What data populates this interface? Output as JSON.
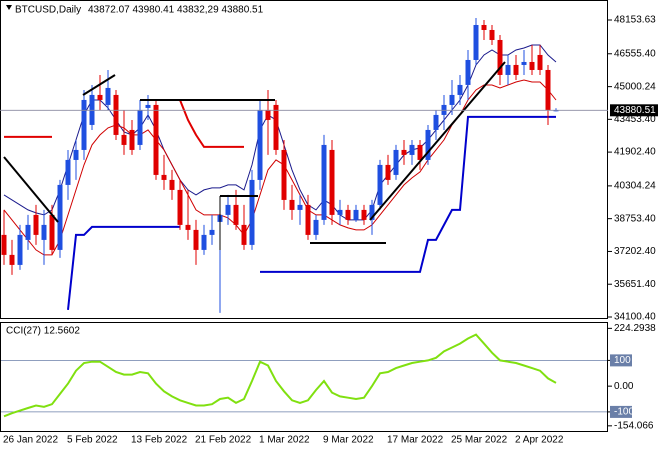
{
  "chart_data": [
    {
      "type": "candlestick",
      "title": "BTCUSD,Daily",
      "subtitle": "43872.07 43980.41 43832,29 43880.51",
      "categories": [
        "26 Jan 2022",
        null,
        null,
        null,
        null,
        null,
        null,
        null,
        "5 Feb 2022",
        null,
        null,
        null,
        null,
        null,
        null,
        null,
        "13 Feb 2022",
        null,
        null,
        null,
        null,
        null,
        null,
        null,
        "21 Feb 2022",
        null,
        null,
        null,
        null,
        null,
        null,
        null,
        "1 Mar 2022",
        null,
        null,
        null,
        null,
        null,
        null,
        null,
        "9 Mar 2022",
        null,
        null,
        null,
        null,
        null,
        null,
        null,
        "17 Mar 2022",
        null,
        null,
        null,
        null,
        null,
        null,
        null,
        "25 Mar 2022",
        null,
        null,
        null,
        null,
        null,
        null,
        null,
        "2 Apr 2022",
        null,
        null,
        null,
        null,
        null
      ],
      "open": [
        37985,
        37039,
        36565,
        37748,
        38931,
        37748,
        38931,
        37275,
        40350,
        41532,
        42005,
        43188,
        44607,
        44134,
        44607,
        42715,
        42951,
        42242,
        43992,
        44134,
        40823,
        40586,
        40113,
        38458,
        38221,
        37275,
        37985,
        38600,
        38931,
        39404,
        38458,
        37512,
        40586,
        43897,
        44134,
        42005,
        39640,
        39167,
        39404,
        37985,
        38694,
        42005,
        38931,
        39167,
        38694,
        39167,
        38694,
        39404,
        41296,
        40823,
        42005,
        41769,
        42242,
        41532,
        42951,
        43661,
        44134,
        44607,
        45080,
        46262,
        47917,
        47681,
        47208,
        45553,
        46026,
        46026,
        46167,
        46499,
        45789,
        43872.07
      ],
      "high": [
        39167,
        37748,
        38458,
        38931,
        39404,
        39167,
        39404,
        40586,
        42005,
        42478,
        44843,
        45080,
        45553,
        45789,
        44843,
        43897,
        43424,
        44370,
        44607,
        44370,
        41769,
        41059,
        40586,
        40113,
        38694,
        38458,
        38931,
        39640,
        39877,
        40113,
        39404,
        41059,
        44370,
        44843,
        44370,
        42478,
        40350,
        39877,
        39877,
        38931,
        42715,
        42478,
        39640,
        39404,
        39404,
        39404,
        39640,
        41532,
        41769,
        42242,
        42478,
        42478,
        42478,
        43188,
        43897,
        44607,
        45316,
        45553,
        46735,
        48249,
        48154,
        47917,
        47445,
        46499,
        46499,
        46735,
        46972,
        46972,
        46026,
        43980.41
      ],
      "low": [
        36565,
        36093,
        36329,
        37275,
        37512,
        36565,
        37039,
        36897,
        39640,
        40586,
        41532,
        42951,
        43897,
        43897,
        42478,
        41769,
        41769,
        42005,
        43424,
        40586,
        40113,
        39640,
        38221,
        37748,
        36565,
        37039,
        37512,
        34295,
        38458,
        38221,
        37275,
        37275,
        40113,
        41769,
        41769,
        39167,
        38694,
        38458,
        37748,
        37748,
        38458,
        38458,
        38458,
        38458,
        38600,
        38458,
        37985,
        39167,
        40350,
        40586,
        41296,
        41296,
        41059,
        41296,
        42478,
        42951,
        43661,
        44134,
        44370,
        46026,
        47208,
        46972,
        45080,
        45080,
        45316,
        45553,
        45553,
        45553,
        43188,
        43832.29
      ],
      "close": [
        37039,
        36565,
        37985,
        38458,
        37985,
        38458,
        37275,
        40350,
        41532,
        42005,
        44370,
        44607,
        44370,
        44938,
        42715,
        42242,
        42005,
        43897,
        44134,
        40823,
        40586,
        40113,
        38458,
        38221,
        37275,
        37985,
        38221,
        38931,
        39404,
        38458,
        37512,
        40586,
        43897,
        43424,
        42005,
        39640,
        39167,
        39404,
        37985,
        38694,
        42242,
        38931,
        39167,
        38694,
        39167,
        38694,
        39404,
        41296,
        40586,
        42005,
        41769,
        42242,
        41532,
        42951,
        43661,
        44134,
        44607,
        45080,
        46262,
        47917,
        47681,
        47208,
        45553,
        46026,
        45553,
        46167,
        45789,
        45789,
        43897,
        43880.51
      ],
      "up_color": "#1f4fe0",
      "down_color": "#e00000",
      "series": [
        {
          "color": "#1a1a8c",
          "width": 1,
          "values": [
            39877,
            39640,
            39404,
            39167,
            39025,
            38931,
            39167,
            40113,
            41296,
            42478,
            43661,
            44370,
            44370,
            43992,
            43424,
            42856,
            42715,
            43046,
            43661,
            42951,
            42005,
            41296,
            40586,
            40113,
            39877,
            40113,
            40208,
            40208,
            40350,
            40350,
            40113,
            41296,
            42951,
            43661,
            43424,
            42242,
            41059,
            40113,
            39404,
            39167,
            39640,
            39404,
            38931,
            38694,
            38694,
            38694,
            39167,
            40350,
            40823,
            41296,
            41769,
            42005,
            42100,
            42478,
            42951,
            43424,
            43897,
            44370,
            45080,
            46026,
            46499,
            46735,
            46499,
            46499,
            46735,
            46830,
            46972,
            46972,
            46499,
            46167
          ]
        },
        {
          "color": "#d00000",
          "width": 1,
          "values": [
            39167,
            38694,
            38221,
            37748,
            37275,
            37039,
            37039,
            37748,
            38931,
            40113,
            41296,
            42242,
            42715,
            43046,
            43188,
            43046,
            42715,
            42715,
            42951,
            42478,
            42005,
            41296,
            40586,
            39877,
            39167,
            38931,
            38931,
            38931,
            38789,
            38458,
            37985,
            38694,
            39877,
            41059,
            41532,
            41296,
            40586,
            39877,
            39167,
            38931,
            38931,
            38694,
            38458,
            38316,
            38221,
            38221,
            38458,
            38931,
            39404,
            39877,
            40350,
            40681,
            40966,
            41532,
            42005,
            42478,
            43188,
            43661,
            44370,
            44843,
            45080,
            45080,
            44938,
            45080,
            45221,
            45316,
            45221,
            45221,
            44843,
            44370
          ]
        },
        {
          "color": "#0000cc",
          "width": 2,
          "values": [
            null,
            null,
            null,
            null,
            null,
            null,
            null,
            null,
            34437,
            37985,
            37985,
            38363,
            38363,
            38363,
            38363,
            38363,
            38363,
            38363,
            38363,
            38363,
            38363,
            38363,
            38363,
            null,
            null,
            null,
            null,
            null,
            null,
            null,
            null,
            null,
            36234,
            36234,
            36234,
            36234,
            36234,
            36234,
            36234,
            36234,
            36234,
            36234,
            36234,
            36234,
            36234,
            36234,
            36234,
            36234,
            36234,
            36234,
            36234,
            36234,
            36234,
            37748,
            37748,
            38458,
            39167,
            39167,
            43566,
            43566,
            43566,
            43566,
            43566,
            43566,
            43566,
            43566,
            43566,
            43566,
            43566,
            43566
          ]
        },
        {
          "color": "#e00000",
          "width": 2,
          "values": [
            42620,
            42620,
            42620,
            42620,
            42620,
            42620,
            42620,
            null,
            null,
            null,
            null,
            null,
            null,
            null,
            null,
            null,
            null,
            44370,
            44370,
            44370,
            44370,
            44370,
            44370,
            43424,
            42715,
            42147,
            42147,
            42147,
            42147,
            42147,
            42147,
            null,
            null,
            null,
            null,
            null,
            null,
            null,
            null,
            null,
            null,
            null,
            null,
            null,
            null,
            null,
            null,
            null,
            null,
            null,
            null,
            null,
            null,
            null,
            null,
            null,
            null,
            null,
            null,
            null,
            null,
            null,
            null,
            null,
            null,
            null,
            null,
            null,
            null,
            null
          ]
        }
      ],
      "ylim": [
        34053,
        49005
      ],
      "yticks": [
        48153.63,
        {
          "value": 46555.4,
          "label": "46555.40"
        },
        45000.24,
        {
          "value": 43453.4,
          "label": "43453.40"
        },
        {
          "value": 41902.4,
          "label": "41902.40"
        },
        40304.24,
        {
          "value": 38753.4,
          "label": "38753.40"
        },
        {
          "value": 37202.4,
          "label": "37202.40"
        },
        {
          "value": 35651.4,
          "label": "35651.40"
        },
        {
          "value": 34100.4,
          "label": "34100.40"
        }
      ],
      "last_price": 43880.51
    },
    {
      "type": "line",
      "title": "CCI(27) 12.5602",
      "color": "#80e010",
      "values": [
        -117,
        -105,
        -95,
        -85,
        -75,
        -80,
        -70,
        -30,
        10,
        60,
        90,
        95,
        95,
        75,
        55,
        45,
        45,
        55,
        50,
        10,
        -20,
        -40,
        -55,
        -65,
        -75,
        -75,
        -70,
        -50,
        -45,
        -65,
        -50,
        20,
        95,
        80,
        20,
        -20,
        -55,
        -65,
        -55,
        -15,
        20,
        -25,
        -40,
        -45,
        -50,
        -45,
        0,
        50,
        55,
        70,
        80,
        90,
        95,
        100,
        110,
        135,
        150,
        165,
        185,
        200,
        165,
        130,
        100,
        95,
        90,
        80,
        70,
        60,
        30,
        12.56
      ],
      "ylim": [
        -178,
        249
      ],
      "yticks": [
        224.2938,
        100,
        {
          "value": 0,
          "label": "0.00"
        },
        -100,
        -154.066
      ],
      "levels": [
        100,
        -100
      ]
    }
  ]
}
